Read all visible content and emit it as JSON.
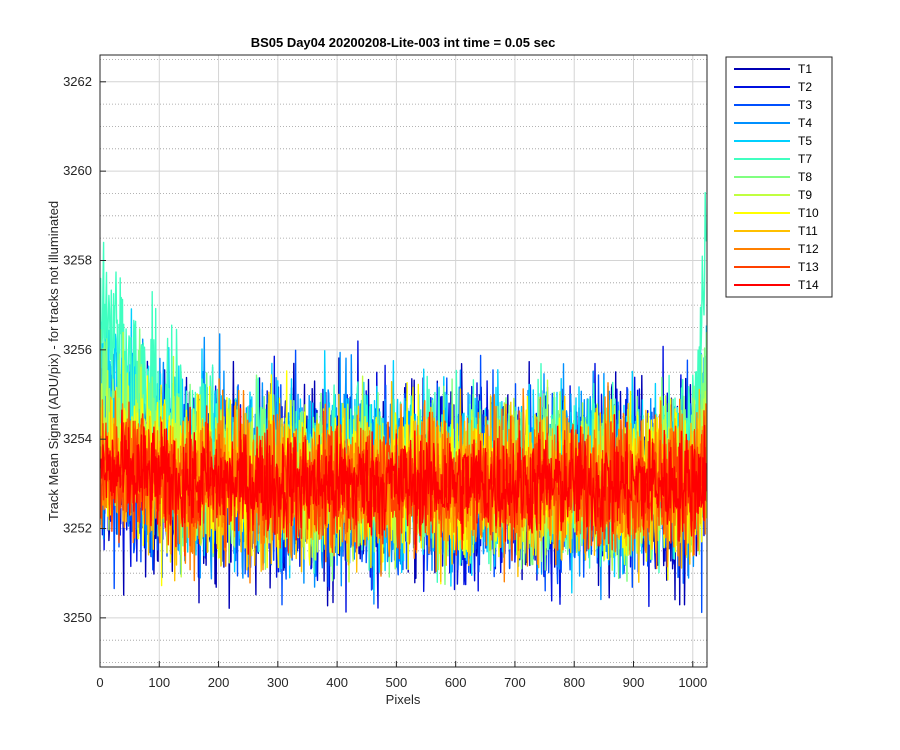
{
  "chart_data": {
    "type": "line",
    "title": "BS05 Day04 20200208-Lite-003 int time = 0.05 sec",
    "xlabel": "Pixels",
    "ylabel": "Track Mean Signal (ADU/pix) - for tracks not illuminated",
    "xlim": [
      0,
      1024
    ],
    "ylim": [
      3248.9,
      3262.6
    ],
    "xticks": [
      0,
      100,
      200,
      300,
      400,
      500,
      600,
      700,
      800,
      900,
      1000
    ],
    "yticks": [
      3250,
      3252,
      3254,
      3256,
      3258,
      3260,
      3262
    ],
    "grid": true,
    "minor_grid": true,
    "legend_position": "outside-right",
    "series": [
      {
        "name": "T1",
        "color": "#0000b3",
        "baseline": 3253.0,
        "noise": 2.6,
        "edge_left": 0.6,
        "edge_right": 0.6
      },
      {
        "name": "T2",
        "color": "#0010e0",
        "baseline": 3253.0,
        "noise": 2.6,
        "edge_left": 0.6,
        "edge_right": 0.6
      },
      {
        "name": "T3",
        "color": "#0050ff",
        "baseline": 3253.0,
        "noise": 2.6,
        "edge_left": 0.8,
        "edge_right": 0.8
      },
      {
        "name": "T4",
        "color": "#0090ff",
        "baseline": 3253.1,
        "noise": 2.5,
        "edge_left": 1.2,
        "edge_right": 1.0
      },
      {
        "name": "T5",
        "color": "#00d0ff",
        "baseline": 3253.2,
        "noise": 2.4,
        "edge_left": 2.6,
        "edge_right": 3.0
      },
      {
        "name": "T7",
        "color": "#40ffc0",
        "baseline": 3253.2,
        "noise": 2.2,
        "edge_left": 4.2,
        "edge_right": 6.5
      },
      {
        "name": "T8",
        "color": "#80ff80",
        "baseline": 3253.1,
        "noise": 2.2,
        "edge_left": 2.2,
        "edge_right": 1.5
      },
      {
        "name": "T9",
        "color": "#c0ff40",
        "baseline": 3253.0,
        "noise": 2.1,
        "edge_left": 1.4,
        "edge_right": 0.8
      },
      {
        "name": "T10",
        "color": "#ffff00",
        "baseline": 3253.0,
        "noise": 2.0,
        "edge_left": 0.8,
        "edge_right": 0.6
      },
      {
        "name": "T11",
        "color": "#ffc000",
        "baseline": 3253.0,
        "noise": 2.0,
        "edge_left": 0.6,
        "edge_right": 0.5
      },
      {
        "name": "T12",
        "color": "#ff8000",
        "baseline": 3253.0,
        "noise": 2.0,
        "edge_left": 0.5,
        "edge_right": 0.5
      },
      {
        "name": "T13",
        "color": "#ff4000",
        "baseline": 3253.0,
        "noise": 1.6,
        "edge_left": 0.4,
        "edge_right": 0.4
      },
      {
        "name": "T14",
        "color": "#ff0000",
        "baseline": 3253.0,
        "noise": 1.4,
        "edge_left": 0.3,
        "edge_right": 0.3
      }
    ]
  }
}
